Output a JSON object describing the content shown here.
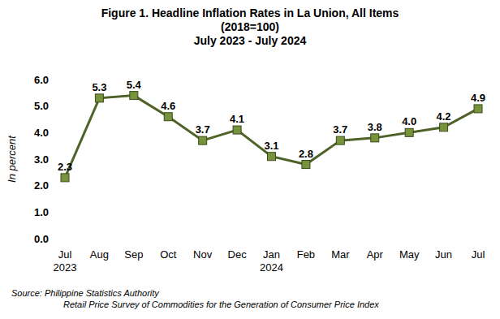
{
  "chart_data": {
    "type": "line",
    "title": "Figure 1. Headline Inflation Rates in La Union, All Items",
    "subtitle": [
      "(2018=100)",
      "July 2023 - July 2024"
    ],
    "y_label": "In percent",
    "source": [
      "Source: Philippine Statistics Authority",
      "Retail Price Survey of Commodities for the Generation of Consumer Price Index"
    ],
    "categories": [
      "Jul 2023",
      "Aug",
      "Sep",
      "Oct",
      "Nov",
      "Dec",
      "Jan 2024",
      "Feb",
      "Mar",
      "Apr",
      "May",
      "Jun",
      "Jul"
    ],
    "values": [
      2.3,
      5.3,
      5.4,
      4.6,
      3.7,
      4.1,
      3.1,
      2.8,
      3.7,
      3.8,
      4.0,
      4.2,
      4.9
    ],
    "value_labels": [
      "2.3",
      "5.3",
      "5.4",
      "4.6",
      "3.7",
      "4.1",
      "3.1",
      "2.8",
      "3.7",
      "3.8",
      "4.0",
      "4.2",
      "4.9"
    ],
    "color": "#4f6228",
    "marker": "square",
    "line_style": "solid",
    "data_labels": true,
    "grid": false,
    "ylim": [
      0,
      6
    ],
    "yticks": [
      {
        "value": 0,
        "label": "0.0"
      },
      {
        "value": 1,
        "label": "1.0"
      },
      {
        "value": 2,
        "label": "2.0"
      },
      {
        "value": 3,
        "label": "3.0"
      },
      {
        "value": 4,
        "label": "4.0"
      },
      {
        "value": 5,
        "label": "5.0"
      },
      {
        "value": 6,
        "label": "6.0"
      }
    ]
  }
}
